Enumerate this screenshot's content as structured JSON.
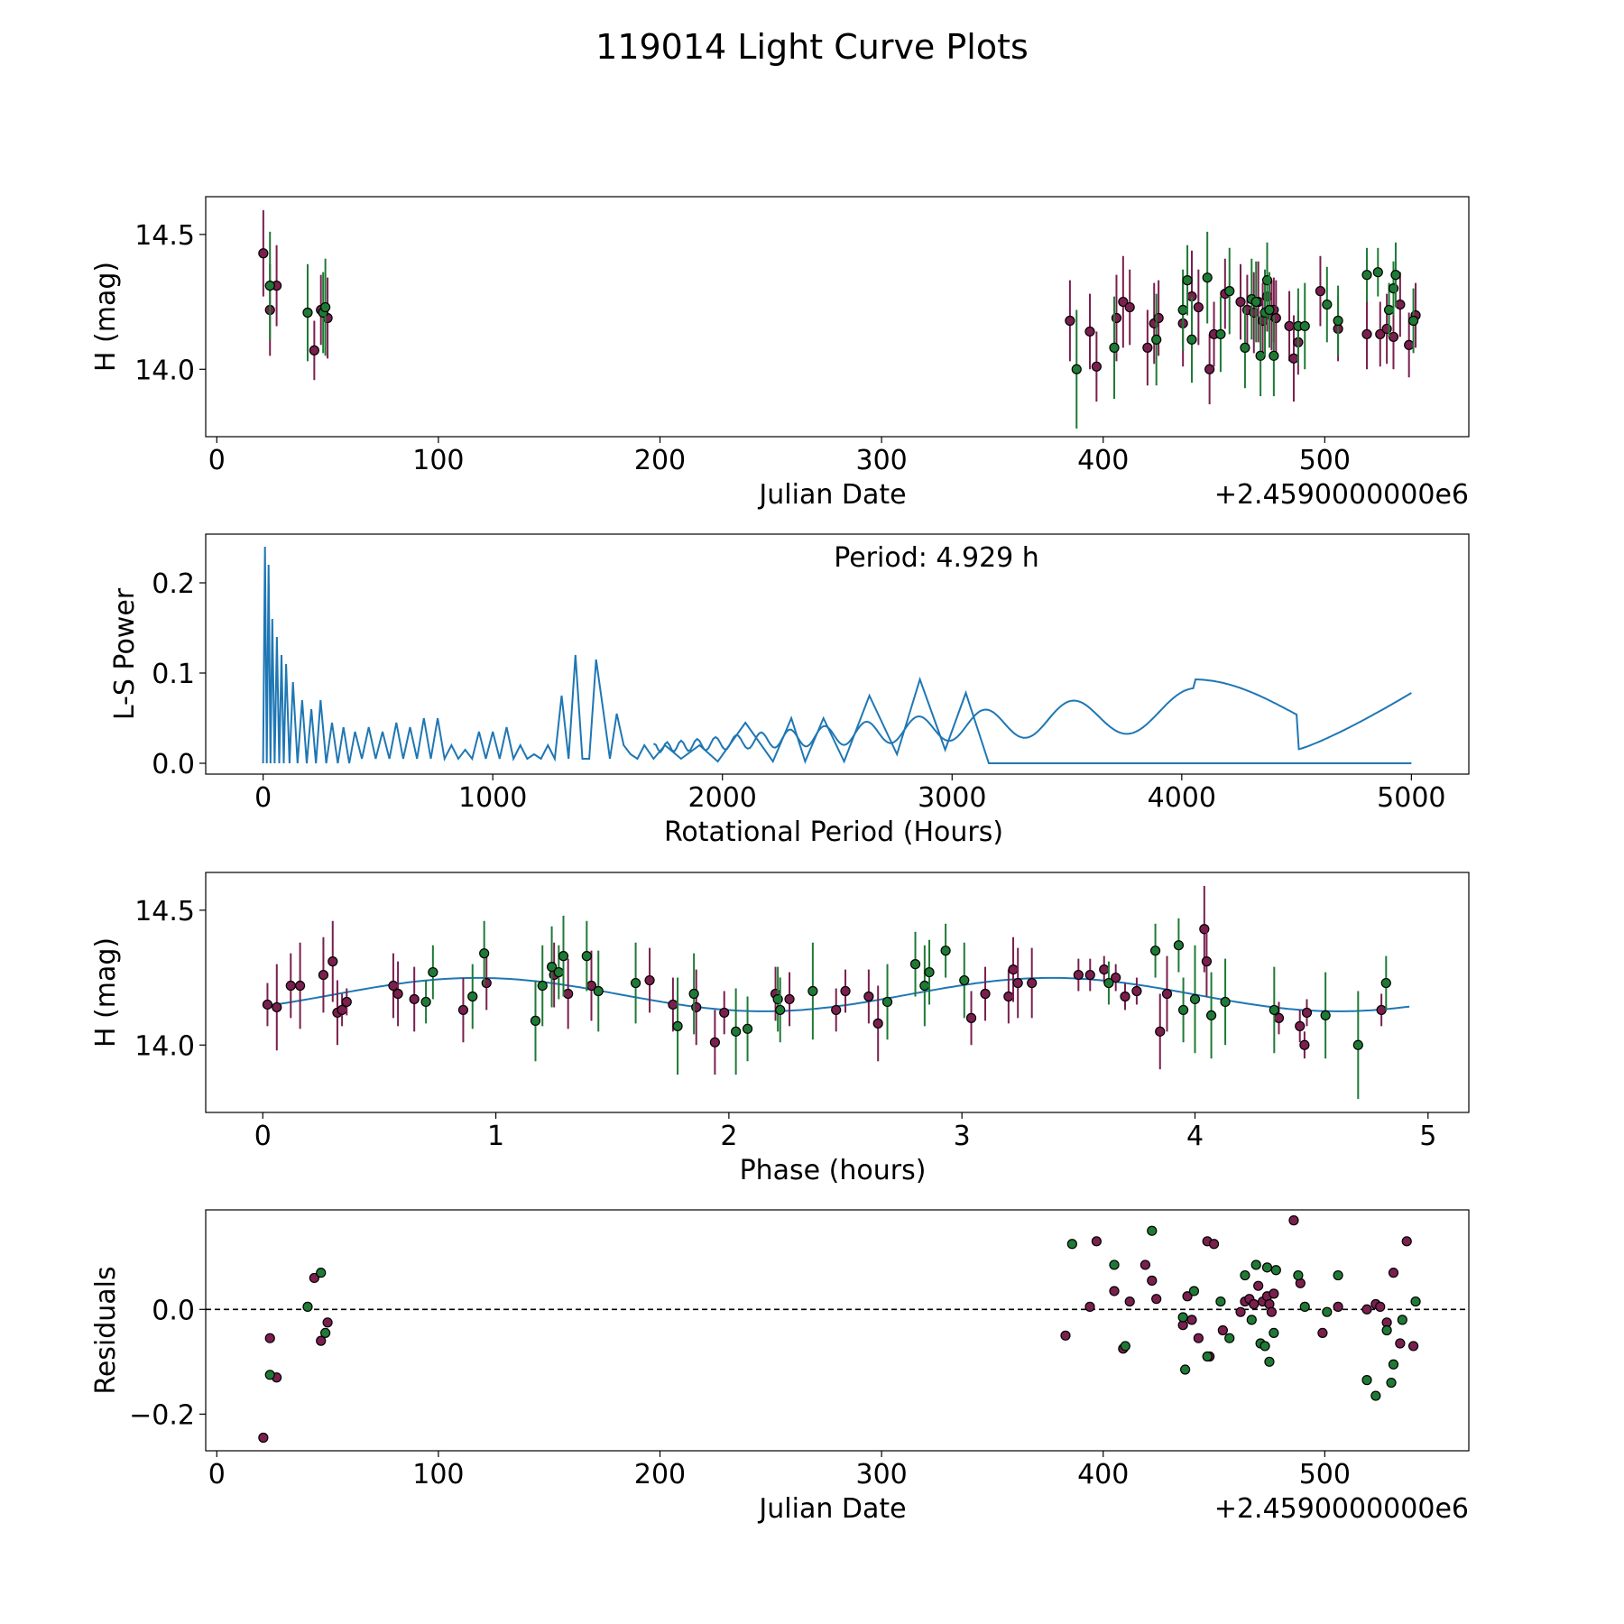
{
  "figure_title": "119014 Light Curve Plots",
  "colors": {
    "r_band": "#7a1f4e",
    "g_band": "#1f7a35",
    "curve": "#1f77b4",
    "marker_edge": "#000000"
  },
  "chart_data": [
    {
      "type": "scatter",
      "name": "light-curve",
      "title": "",
      "xlabel": "Julian Date",
      "ylabel": "H (mag)",
      "x_offset_label": "+2.4590000000e6",
      "xlim": [
        -5,
        565
      ],
      "ylim": [
        13.75,
        14.64
      ],
      "xticks": [
        0,
        100,
        200,
        300,
        400,
        500
      ],
      "xtick_labels": [
        "0",
        "100",
        "200",
        "300",
        "400",
        "500"
      ],
      "yticks": [
        14.0,
        14.5
      ],
      "ytick_labels": [
        "14.0",
        "14.5"
      ],
      "series": [
        {
          "name": "r",
          "color": "#7a1f4e",
          "x": [
            21,
            24,
            27,
            44,
            47,
            50,
            385,
            394,
            397,
            406,
            409,
            412,
            420,
            423,
            425,
            436,
            440,
            443,
            448,
            450,
            455,
            462,
            465,
            468,
            470,
            472,
            474,
            476,
            477,
            478,
            484,
            486,
            488,
            498,
            506,
            519,
            525,
            528,
            531,
            534,
            538,
            541
          ],
          "y": [
            14.43,
            14.22,
            14.31,
            14.07,
            14.22,
            14.19,
            14.18,
            14.14,
            14.01,
            14.19,
            14.25,
            14.23,
            14.08,
            14.17,
            14.19,
            14.17,
            14.27,
            14.23,
            14.0,
            14.13,
            14.28,
            14.25,
            14.22,
            14.21,
            14.25,
            14.18,
            14.27,
            14.2,
            14.22,
            14.19,
            14.16,
            14.04,
            14.1,
            14.29,
            14.15,
            14.13,
            14.13,
            14.15,
            14.12,
            14.24,
            14.09,
            14.2
          ],
          "err": [
            0.16,
            0.17,
            0.15,
            0.11,
            0.13,
            0.15,
            0.15,
            0.14,
            0.13,
            0.16,
            0.17,
            0.14,
            0.14,
            0.15,
            0.14,
            0.16,
            0.17,
            0.14,
            0.13,
            0.12,
            0.13,
            0.14,
            0.13,
            0.15,
            0.15,
            0.14,
            0.13,
            0.13,
            0.12,
            0.14,
            0.13,
            0.16,
            0.12,
            0.13,
            0.12,
            0.13,
            0.12,
            0.13,
            0.12,
            0.12,
            0.12,
            0.12
          ]
        },
        {
          "name": "g",
          "color": "#1f7a35",
          "x": [
            24,
            41,
            48,
            49,
            388,
            405,
            424,
            436,
            438,
            440,
            447,
            453,
            457,
            464,
            467,
            469,
            471,
            473,
            474,
            475,
            477,
            488,
            491,
            501,
            506,
            519,
            524,
            529,
            531,
            532,
            540
          ],
          "y": [
            14.31,
            14.21,
            14.21,
            14.23,
            14.0,
            14.08,
            14.11,
            14.22,
            14.33,
            14.11,
            14.34,
            14.13,
            14.29,
            14.08,
            14.26,
            14.25,
            14.05,
            14.21,
            14.33,
            14.22,
            14.05,
            14.16,
            14.16,
            14.24,
            14.18,
            14.35,
            14.36,
            14.22,
            14.3,
            14.35,
            14.18
          ],
          "err": [
            0.2,
            0.18,
            0.15,
            0.18,
            0.22,
            0.19,
            0.17,
            0.15,
            0.13,
            0.16,
            0.17,
            0.14,
            0.16,
            0.15,
            0.15,
            0.15,
            0.15,
            0.16,
            0.14,
            0.14,
            0.15,
            0.14,
            0.16,
            0.14,
            0.13,
            0.1,
            0.09,
            0.1,
            0.1,
            0.12,
            0.12
          ]
        }
      ]
    },
    {
      "type": "line",
      "name": "periodogram",
      "title": "",
      "xlabel": "Rotational Period (Hours)",
      "ylabel": "L-S Power",
      "annotation": "Period: 4.929 h",
      "xlim": [
        -250,
        5250
      ],
      "ylim": [
        -0.012,
        0.254
      ],
      "xticks": [
        0,
        1000,
        2000,
        3000,
        4000,
        5000
      ],
      "xtick_labels": [
        "0",
        "1000",
        "2000",
        "3000",
        "4000",
        "5000"
      ],
      "yticks": [
        0.0,
        0.1,
        0.2
      ],
      "ytick_labels": [
        "0.0",
        "0.1",
        "0.2"
      ],
      "x": [
        0,
        8,
        16,
        24,
        32,
        40,
        50,
        60,
        70,
        80,
        90,
        100,
        115,
        130,
        150,
        170,
        190,
        210,
        230,
        250,
        275,
        300,
        325,
        350,
        375,
        400,
        430,
        460,
        490,
        520,
        550,
        580,
        610,
        640,
        670,
        700,
        730,
        760,
        790,
        820,
        850,
        880,
        910,
        940,
        970,
        1000,
        1030,
        1060,
        1090,
        1120,
        1150,
        1180,
        1210,
        1240,
        1270,
        1300,
        1330,
        1360,
        1390,
        1420,
        1450,
        1480,
        1510,
        1540,
        1570,
        1600,
        1630,
        1660,
        1700,
        1750,
        1820,
        1900,
        1980,
        2100,
        2220,
        2300,
        2360,
        2440,
        2530,
        2640,
        2760,
        2860,
        2970,
        3060,
        3160,
        3300,
        3420,
        3560,
        3690,
        3850,
        4050,
        4250,
        4500,
        4700,
        4850,
        5000
      ],
      "y": [
        0.0,
        0.24,
        0.0,
        0.22,
        0.0,
        0.16,
        0.0,
        0.14,
        0.0,
        0.12,
        0.0,
        0.11,
        0.0,
        0.09,
        0.0,
        0.07,
        0.0,
        0.06,
        0.0,
        0.07,
        0.0,
        0.045,
        0.0,
        0.04,
        0.0,
        0.035,
        0.005,
        0.04,
        0.005,
        0.035,
        0.005,
        0.045,
        0.005,
        0.04,
        0.005,
        0.05,
        0.005,
        0.05,
        0.005,
        0.02,
        0.005,
        0.015,
        0.005,
        0.035,
        0.005,
        0.035,
        0.005,
        0.04,
        0.005,
        0.02,
        0.005,
        0.01,
        0.005,
        0.02,
        0.005,
        0.075,
        0.005,
        0.12,
        0.005,
        0.005,
        0.115,
        0.06,
        0.005,
        0.055,
        0.02,
        0.01,
        0.005,
        0.02,
        0.005,
        0.02,
        0.005,
        0.02,
        0.002,
        0.045,
        0.002,
        0.05,
        0.002,
        0.05,
        0.002,
        0.075,
        0.01,
        0.093,
        0.015,
        0.078,
        0.0,
        0.0,
        0.0,
        0.0,
        0.0,
        0.0,
        0.0,
        0.0,
        0.0,
        0.0,
        0.0,
        0.0
      ]
    },
    {
      "type": "scatter",
      "name": "phase-folded",
      "title": "",
      "xlabel": "Phase (hours)",
      "ylabel": "H (mag)",
      "xlim": [
        -0.245,
        5.175
      ],
      "ylim": [
        13.75,
        14.64
      ],
      "xticks": [
        0,
        1,
        2,
        3,
        4,
        5
      ],
      "xtick_labels": [
        "0",
        "1",
        "2",
        "3",
        "4",
        "5"
      ],
      "yticks": [
        14.0,
        14.5
      ],
      "ytick_labels": [
        "14.0",
        "14.5"
      ],
      "model_curve": {
        "mean": 14.187,
        "amplitude": 0.062,
        "period_hours": 2.4645,
        "phase_of_max": 0.92,
        "xmax": 4.929
      },
      "series": [
        {
          "name": "r",
          "color": "#7a1f4e",
          "x": [
            0.02,
            0.06,
            0.12,
            0.16,
            0.26,
            0.3,
            0.32,
            0.34,
            0.36,
            0.56,
            0.58,
            0.65,
            0.86,
            0.96,
            1.25,
            1.31,
            1.41,
            1.66,
            1.76,
            1.86,
            1.94,
            1.98,
            2.2,
            2.26,
            2.46,
            2.5,
            2.6,
            2.64,
            3.04,
            3.1,
            3.2,
            3.22,
            3.24,
            3.3,
            3.5,
            3.55,
            3.61,
            3.66,
            3.7,
            3.75,
            3.85,
            3.88,
            4.04,
            4.05,
            4.36,
            4.45,
            4.47,
            4.48,
            4.8
          ],
          "y": [
            14.15,
            14.14,
            14.22,
            14.22,
            14.26,
            14.31,
            14.12,
            14.13,
            14.16,
            14.22,
            14.19,
            14.17,
            14.13,
            14.23,
            14.26,
            14.19,
            14.22,
            14.24,
            14.15,
            14.14,
            14.01,
            14.12,
            14.19,
            14.17,
            14.13,
            14.2,
            14.18,
            14.08,
            14.1,
            14.19,
            14.18,
            14.28,
            14.23,
            14.23,
            14.26,
            14.26,
            14.28,
            14.25,
            14.18,
            14.2,
            14.05,
            14.19,
            14.43,
            14.31,
            14.1,
            14.07,
            14.0,
            14.12,
            14.13
          ],
          "err": [
            0.08,
            0.16,
            0.12,
            0.16,
            0.14,
            0.15,
            0.12,
            0.06,
            0.05,
            0.12,
            0.12,
            0.12,
            0.12,
            0.1,
            0.12,
            0.13,
            0.13,
            0.12,
            0.1,
            0.14,
            0.12,
            0.08,
            0.1,
            0.1,
            0.08,
            0.08,
            0.1,
            0.14,
            0.1,
            0.1,
            0.1,
            0.12,
            0.13,
            0.13,
            0.06,
            0.06,
            0.05,
            0.05,
            0.05,
            0.05,
            0.14,
            0.14,
            0.16,
            0.13,
            0.06,
            0.06,
            0.05,
            0.05,
            0.06
          ]
        },
        {
          "name": "g",
          "color": "#1f7a35",
          "x": [
            0.7,
            0.73,
            0.9,
            0.95,
            1.17,
            1.2,
            1.24,
            1.27,
            1.29,
            1.39,
            1.44,
            1.6,
            1.78,
            1.85,
            2.03,
            2.08,
            2.21,
            2.22,
            2.36,
            2.68,
            2.8,
            2.84,
            2.86,
            2.93,
            3.01,
            3.63,
            3.83,
            3.93,
            3.95,
            4.0,
            4.07,
            4.13,
            4.34,
            4.56,
            4.7,
            4.82
          ],
          "y": [
            14.16,
            14.27,
            14.18,
            14.34,
            14.09,
            14.22,
            14.29,
            14.27,
            14.33,
            14.33,
            14.2,
            14.23,
            14.07,
            14.19,
            14.05,
            14.06,
            14.17,
            14.13,
            14.2,
            14.16,
            14.3,
            14.22,
            14.27,
            14.35,
            14.24,
            14.23,
            14.35,
            14.37,
            14.13,
            14.17,
            14.11,
            14.16,
            14.13,
            14.11,
            14.0,
            14.23
          ],
          "err": [
            0.08,
            0.1,
            0.12,
            0.12,
            0.15,
            0.15,
            0.15,
            0.1,
            0.15,
            0.13,
            0.15,
            0.15,
            0.18,
            0.15,
            0.16,
            0.12,
            0.12,
            0.12,
            0.18,
            0.14,
            0.12,
            0.15,
            0.12,
            0.1,
            0.14,
            0.08,
            0.1,
            0.1,
            0.12,
            0.2,
            0.16,
            0.16,
            0.16,
            0.16,
            0.2,
            0.1
          ]
        }
      ]
    },
    {
      "type": "scatter",
      "name": "residuals",
      "title": "",
      "xlabel": "Julian Date",
      "ylabel": "Residuals",
      "x_offset_label": "+2.4590000000e6",
      "xlim": [
        -5,
        565
      ],
      "ylim": [
        -0.27,
        0.19
      ],
      "xticks": [
        0,
        100,
        200,
        300,
        400,
        500
      ],
      "xtick_labels": [
        "0",
        "100",
        "200",
        "300",
        "400",
        "500"
      ],
      "yticks": [
        -0.2,
        0.0
      ],
      "ytick_labels": [
        "−0.2",
        "0.0"
      ],
      "reference_line": 0.0,
      "series": [
        {
          "name": "r",
          "color": "#7a1f4e",
          "x": [
            21,
            24,
            27,
            44,
            47,
            50,
            383,
            394,
            397,
            405,
            409,
            412,
            419,
            422,
            424,
            436,
            438,
            440,
            443,
            447,
            448,
            450,
            454,
            462,
            464,
            466,
            468,
            470,
            472,
            474,
            475,
            476,
            477,
            486,
            489,
            499,
            506,
            519,
            523,
            525,
            528,
            531,
            534,
            537,
            540
          ],
          "y": [
            -0.245,
            -0.055,
            -0.13,
            0.06,
            -0.06,
            -0.025,
            -0.05,
            0.005,
            0.13,
            0.035,
            -0.075,
            0.015,
            0.085,
            0.055,
            0.02,
            -0.03,
            0.025,
            -0.02,
            -0.055,
            0.13,
            -0.09,
            0.125,
            -0.04,
            -0.005,
            0.015,
            0.02,
            0.01,
            0.045,
            0.015,
            0.025,
            0.01,
            -0.005,
            0.03,
            0.17,
            0.05,
            -0.045,
            0.005,
            0.0,
            0.01,
            0.005,
            -0.025,
            0.07,
            -0.065,
            0.13,
            -0.07
          ]
        },
        {
          "name": "g",
          "color": "#1f7a35",
          "x": [
            24,
            41,
            47,
            49,
            386,
            405,
            410,
            422,
            436,
            437,
            441,
            447,
            453,
            457,
            464,
            467,
            469,
            471,
            473,
            474,
            475,
            477,
            478,
            488,
            491,
            501,
            506,
            519,
            523,
            528,
            530,
            531,
            535,
            541
          ],
          "y": [
            -0.125,
            0.005,
            0.07,
            -0.045,
            0.125,
            0.085,
            -0.07,
            0.15,
            -0.015,
            -0.115,
            0.035,
            -0.09,
            0.015,
            -0.055,
            0.065,
            -0.02,
            0.085,
            -0.065,
            -0.07,
            0.08,
            -0.1,
            -0.045,
            0.075,
            0.065,
            0.005,
            -0.005,
            0.065,
            -0.135,
            -0.165,
            -0.04,
            -0.14,
            -0.105,
            -0.02,
            0.015
          ]
        }
      ]
    }
  ]
}
